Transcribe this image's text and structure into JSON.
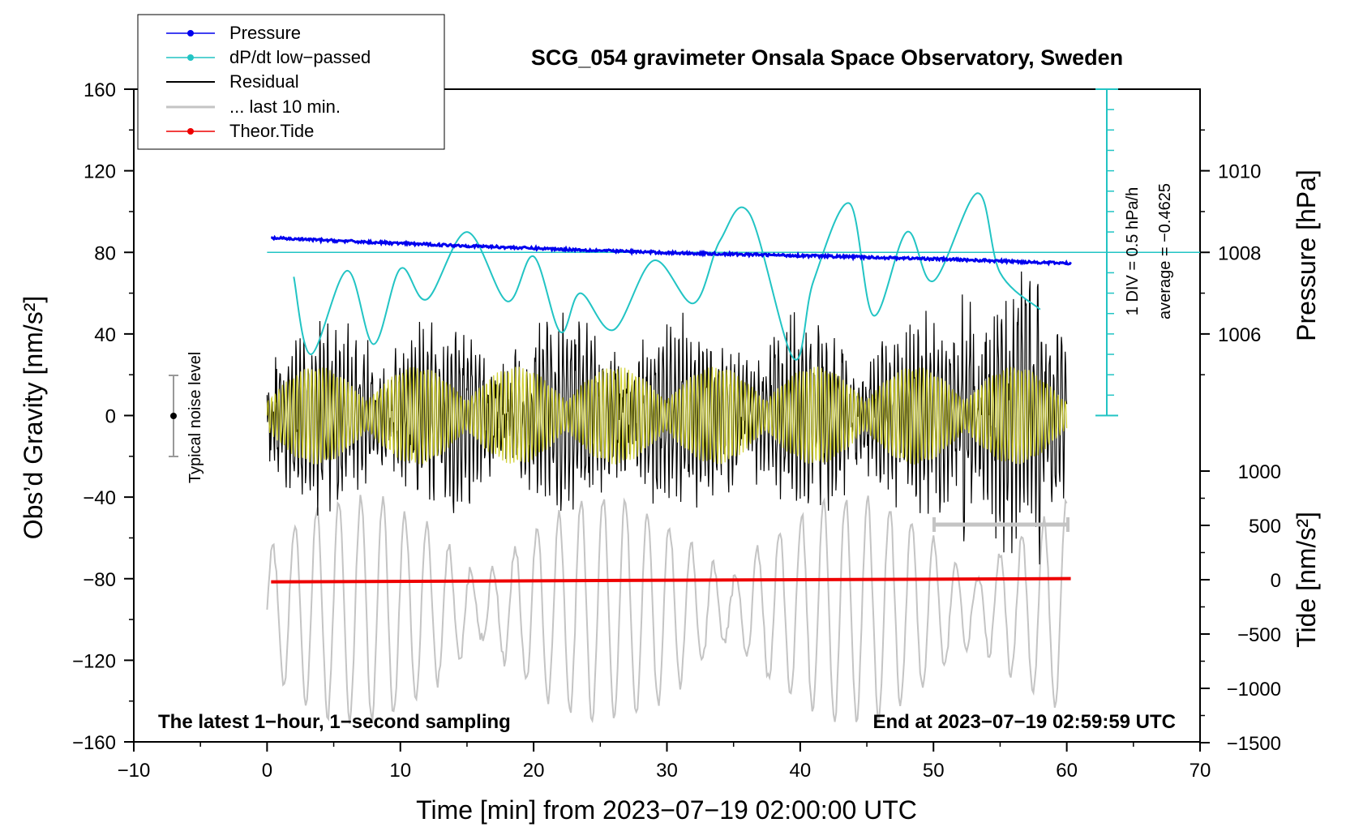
{
  "chart_data": {
    "type": "line",
    "title": "SCG_054 gravimeter Onsala Space Observatory, Sweden",
    "xlabel": "Time [min] from 2023−07−19 02:00:00 UTC",
    "ylabel_left": "Obs’d Gravity [nm/s²]",
    "ylabel_right_top": "Pressure [hPa]",
    "ylabel_right_bottom": "Tide [nm/s²]",
    "xlim": [
      -10,
      70
    ],
    "ylim": [
      -160,
      160
    ],
    "x_ticks": [
      "−10",
      "0",
      "10",
      "20",
      "30",
      "40",
      "50",
      "60",
      "70"
    ],
    "y_ticks": [
      "160",
      "120",
      "80",
      "40",
      "0",
      "−40",
      "−80",
      "−120",
      "−160"
    ],
    "pressure_ticks": [
      "1010",
      "1008",
      "1006"
    ],
    "tide_ticks": [
      "1000",
      "500",
      "0",
      "−500",
      "−1000",
      "−1500"
    ],
    "legend": [
      "Pressure",
      "dP/dt low−passed",
      "Residual",
      "... last 10 min.",
      "Theor.Tide"
    ],
    "noise_label": "Typical noise level",
    "dpdt_scale_label": "1 DIV = 0.5 hPa/h",
    "dpdt_average_label": "average = −0.4625",
    "note_left": "The latest 1−hour, 1−second sampling",
    "note_right": "End at 2023−07−19 02:59:59 UTC",
    "colors": {
      "pressure": "#0000ee",
      "dpdt": "#22c4c4",
      "residual": "#000000",
      "last10": "#c4c4c4",
      "tide": "#ee0000",
      "yellow": "#cccc22"
    },
    "series": [
      {
        "name": "Pressure",
        "unit": "hPa",
        "x": [
          0.3,
          10,
          20,
          30,
          40,
          50,
          60.3
        ],
        "values": [
          1008.35,
          1008.22,
          1008.1,
          1007.99,
          1007.92,
          1007.84,
          1007.73
        ]
      },
      {
        "name": "dP/dt low−passed",
        "unit": "nm/s² plot units",
        "x": [
          2,
          3.3,
          6,
          8,
          10,
          12,
          15,
          18,
          20,
          22,
          23.5,
          26,
          29,
          32,
          34,
          36.2,
          39.5,
          41,
          43.7,
          45.5,
          48,
          50,
          53.3,
          55,
          58
        ],
        "values": [
          68,
          30,
          71,
          35,
          72,
          57,
          90,
          56,
          78,
          41,
          60,
          42,
          76,
          55,
          86,
          99,
          28,
          66,
          104,
          49,
          90,
          66,
          109,
          70,
          52
        ]
      },
      {
        "name": "Residual",
        "unit": "nm/s²",
        "x_range": [
          0,
          60
        ],
        "min": -73,
        "max": 81
      },
      {
        "name": "... last 10 min.",
        "unit": "nm/s²",
        "x_range": [
          0,
          60
        ],
        "min": -160,
        "max": -30
      },
      {
        "name": "Theor.Tide",
        "unit": "nm/s² (tide axis)",
        "x": [
          0.3,
          60.3
        ],
        "values": [
          -20,
          10
        ]
      }
    ]
  }
}
